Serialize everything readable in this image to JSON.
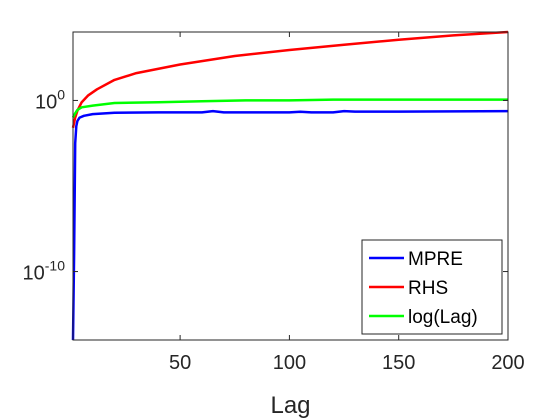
{
  "chart_data": {
    "type": "line",
    "xlabel": "Lag",
    "ylabel": "",
    "yscale": "log",
    "xlim": [
      1,
      200
    ],
    "ylim_log10": [
      -14,
      4
    ],
    "x_ticks": [
      50,
      100,
      150,
      200
    ],
    "y_ticks": [
      {
        "base": "10",
        "exp": "0",
        "log10": 0
      },
      {
        "base": "10",
        "exp": "-10",
        "log10": -10
      }
    ],
    "grid": false,
    "legend_position": "bottom-right",
    "series": [
      {
        "name": "MPRE",
        "color": "#0000ff",
        "points_log10": [
          [
            1,
            -14
          ],
          [
            1.5,
            -9
          ],
          [
            2,
            -2.5
          ],
          [
            2.5,
            -1.5
          ],
          [
            3,
            -1.2
          ],
          [
            4,
            -1.0
          ],
          [
            6,
            -0.9
          ],
          [
            10,
            -0.8
          ],
          [
            20,
            -0.72
          ],
          [
            40,
            -0.7
          ],
          [
            60,
            -0.7
          ],
          [
            65,
            -0.62
          ],
          [
            70,
            -0.7
          ],
          [
            100,
            -0.7
          ],
          [
            105,
            -0.66
          ],
          [
            110,
            -0.7
          ],
          [
            120,
            -0.7
          ],
          [
            125,
            -0.62
          ],
          [
            130,
            -0.65
          ],
          [
            150,
            -0.65
          ],
          [
            200,
            -0.62
          ]
        ]
      },
      {
        "name": "RHS",
        "color": "#ff0000",
        "points_log10": [
          [
            1,
            -1.6
          ],
          [
            2,
            -1.0
          ],
          [
            3,
            -0.6
          ],
          [
            5,
            -0.1
          ],
          [
            8,
            0.3
          ],
          [
            12,
            0.65
          ],
          [
            20,
            1.2
          ],
          [
            30,
            1.6
          ],
          [
            50,
            2.1
          ],
          [
            75,
            2.6
          ],
          [
            100,
            2.95
          ],
          [
            125,
            3.25
          ],
          [
            150,
            3.55
          ],
          [
            175,
            3.8
          ],
          [
            200,
            4.0
          ]
        ]
      },
      {
        "name": "log(Lag)",
        "color": "#00ff00",
        "points_log10": [
          [
            1,
            -1.0
          ],
          [
            2,
            -0.75
          ],
          [
            3,
            -0.55
          ],
          [
            5,
            -0.4
          ],
          [
            10,
            -0.3
          ],
          [
            20,
            -0.15
          ],
          [
            40,
            -0.1
          ],
          [
            60,
            -0.05
          ],
          [
            80,
            0.0
          ],
          [
            100,
            0.0
          ],
          [
            120,
            0.05
          ],
          [
            150,
            0.05
          ],
          [
            200,
            0.05
          ]
        ]
      }
    ]
  }
}
